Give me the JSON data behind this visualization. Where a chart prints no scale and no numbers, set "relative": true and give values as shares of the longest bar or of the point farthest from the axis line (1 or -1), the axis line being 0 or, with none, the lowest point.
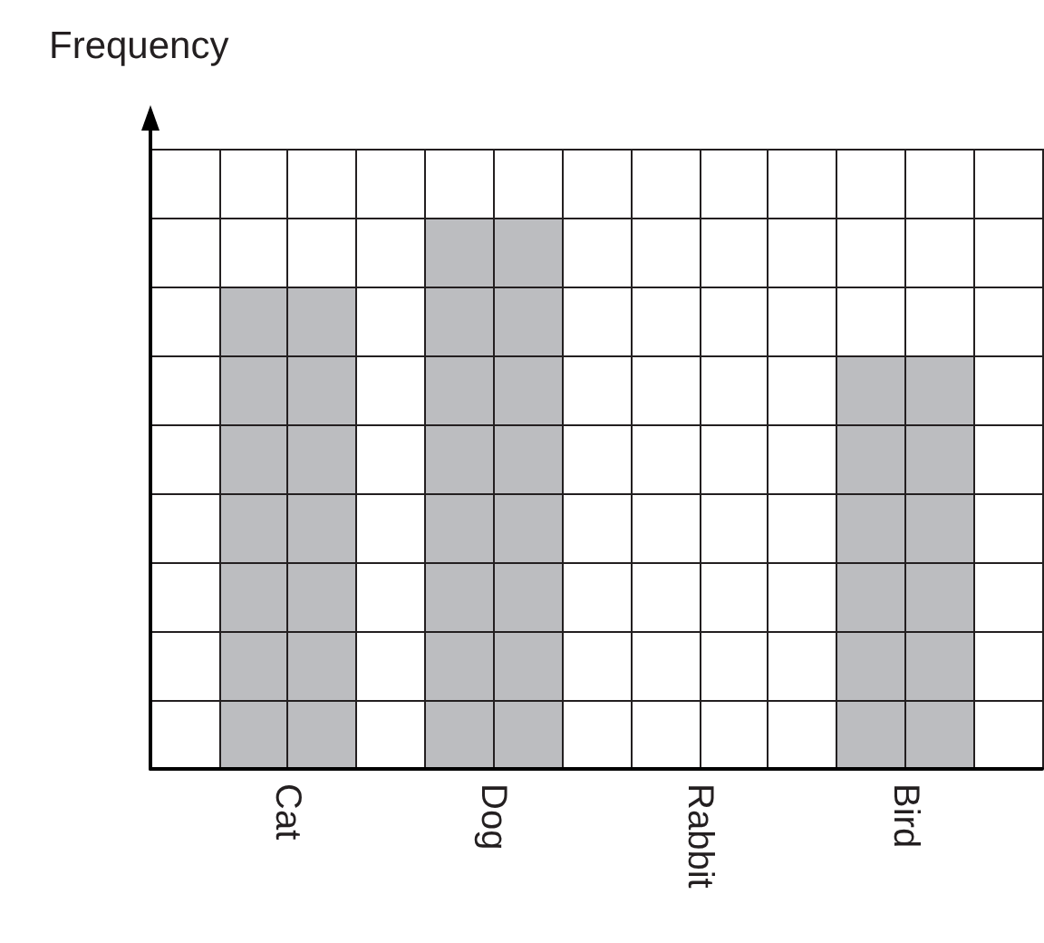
{
  "chart_data": {
    "type": "bar",
    "ylabel": "Frequency",
    "categories": [
      "Cat",
      "Dog",
      "Rabbit",
      "Bird"
    ],
    "values": [
      0.875,
      1,
      0,
      0.75
    ],
    "color": "#bcbdc0",
    "relative": true,
    "grid": true
  }
}
